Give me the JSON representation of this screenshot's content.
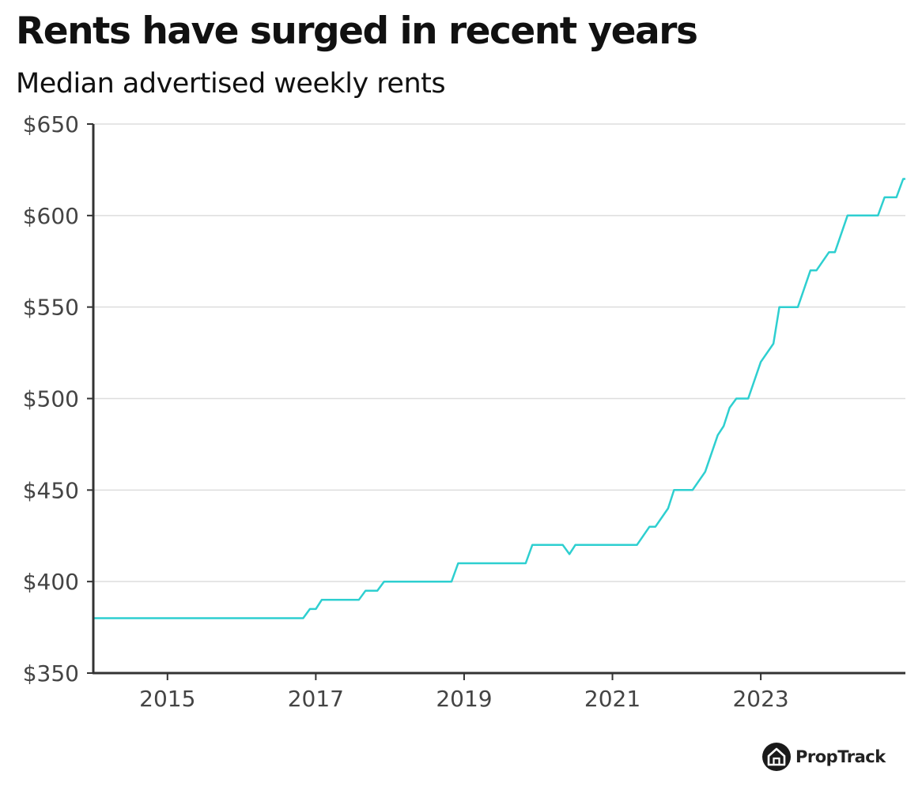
{
  "chart_data": {
    "type": "line",
    "title": "Rents have surged in recent years",
    "subtitle": "Median advertised weekly rents",
    "xlabel": "",
    "ylabel": "",
    "xlim": [
      2014.0,
      2024.95
    ],
    "ylim": [
      350,
      650
    ],
    "yticks": [
      350,
      400,
      450,
      500,
      550,
      600,
      650
    ],
    "ytick_labels": [
      "$350",
      "$400",
      "$450",
      "$500",
      "$550",
      "$600",
      "$650"
    ],
    "xticks": [
      2015,
      2017,
      2019,
      2021,
      2023
    ],
    "xtick_labels": [
      "2015",
      "2017",
      "2019",
      "2021",
      "2023"
    ],
    "grid": "horizontal",
    "legend": "none",
    "series": [
      {
        "color": "#2ecfd0",
        "points": [
          [
            2014.0,
            380
          ],
          [
            2016.83,
            380
          ],
          [
            2016.92,
            385
          ],
          [
            2017.0,
            385
          ],
          [
            2017.08,
            390
          ],
          [
            2017.58,
            390
          ],
          [
            2017.67,
            395
          ],
          [
            2017.83,
            395
          ],
          [
            2017.92,
            400
          ],
          [
            2018.83,
            400
          ],
          [
            2018.92,
            410
          ],
          [
            2019.83,
            410
          ],
          [
            2019.92,
            420
          ],
          [
            2020.33,
            420
          ],
          [
            2020.42,
            415
          ],
          [
            2020.5,
            420
          ],
          [
            2021.33,
            420
          ],
          [
            2021.5,
            430
          ],
          [
            2021.58,
            430
          ],
          [
            2021.75,
            440
          ],
          [
            2021.83,
            450
          ],
          [
            2022.08,
            450
          ],
          [
            2022.25,
            460
          ],
          [
            2022.42,
            480
          ],
          [
            2022.5,
            485
          ],
          [
            2022.58,
            495
          ],
          [
            2022.67,
            500
          ],
          [
            2022.83,
            500
          ],
          [
            2023.0,
            520
          ],
          [
            2023.17,
            530
          ],
          [
            2023.25,
            550
          ],
          [
            2023.5,
            550
          ],
          [
            2023.67,
            570
          ],
          [
            2023.75,
            570
          ],
          [
            2023.92,
            580
          ],
          [
            2024.0,
            580
          ],
          [
            2024.17,
            600
          ],
          [
            2024.58,
            600
          ],
          [
            2024.67,
            610
          ],
          [
            2024.83,
            610
          ],
          [
            2024.92,
            620
          ],
          [
            2024.95,
            620
          ]
        ]
      }
    ]
  },
  "brand": {
    "name": "PropTrack",
    "logo_icon": "house-icon"
  }
}
